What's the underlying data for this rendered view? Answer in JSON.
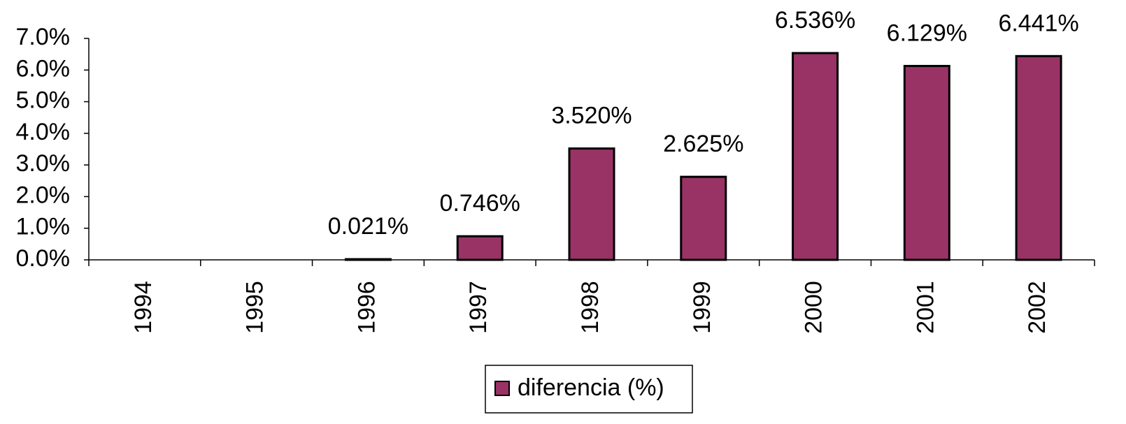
{
  "chart_data": {
    "type": "bar",
    "categories": [
      "1994",
      "1995",
      "1996",
      "1997",
      "1998",
      "1999",
      "2000",
      "2001",
      "2002"
    ],
    "series": [
      {
        "name": "diferencia (%)",
        "color": "#993366",
        "values": [
          null,
          null,
          0.021,
          0.746,
          3.52,
          2.625,
          6.536,
          6.129,
          6.441
        ],
        "value_labels": [
          null,
          null,
          "0.021%",
          "0.746%",
          "3.520%",
          "2.625%",
          "6.536%",
          "6.129%",
          "6.441%"
        ]
      }
    ],
    "ylim": [
      0,
      7
    ],
    "yticks": [
      {
        "value": 0,
        "label": "0.0%"
      },
      {
        "value": 1,
        "label": "1.0%"
      },
      {
        "value": 2,
        "label": "2.0%"
      },
      {
        "value": 3,
        "label": "3.0%"
      },
      {
        "value": 4,
        "label": "4.0%"
      },
      {
        "value": 5,
        "label": "5.0%"
      },
      {
        "value": 6,
        "label": "6.0%"
      },
      {
        "value": 7,
        "label": "7.0%"
      }
    ],
    "grid": false
  }
}
